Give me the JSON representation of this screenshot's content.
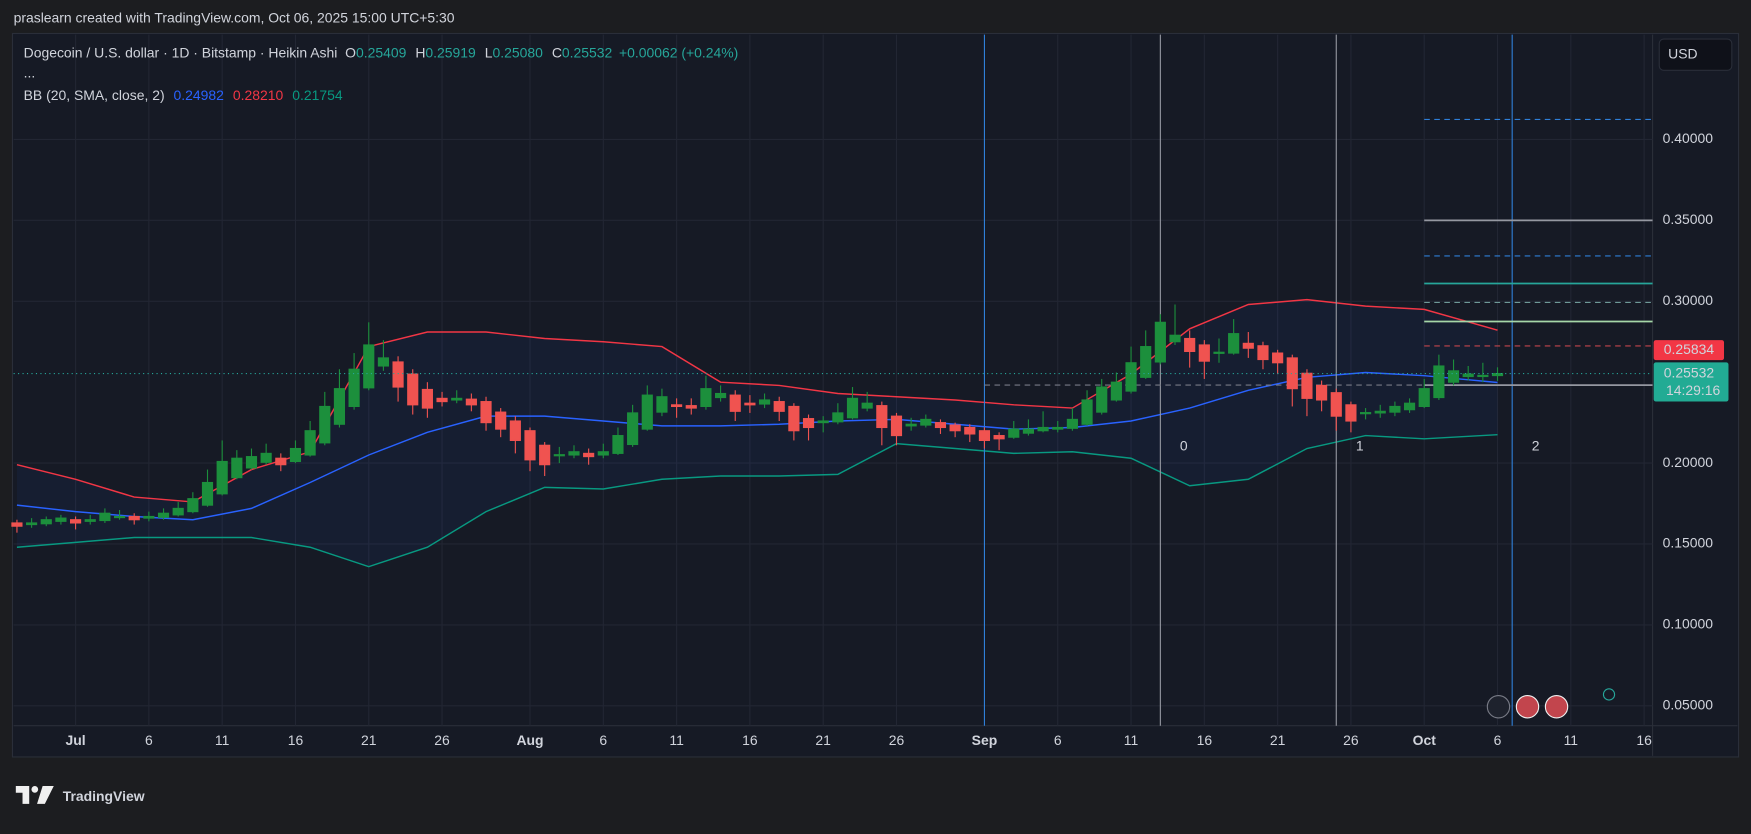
{
  "header": {
    "credit": "praslearn created with TradingView.com, Oct 06, 2025 15:00 UTC+5:30",
    "currency": "USD",
    "logo": "TradingView"
  },
  "chart_data": {
    "type": "candlestick",
    "symbol": "Dogecoin / U.S. dollar · 1D · Bitstamp · Heikin Ashi",
    "more": "...",
    "last_labels": [
      {
        "key": "O",
        "label": "0.25409"
      },
      {
        "key": "H",
        "label": "0.25919"
      },
      {
        "key": "L",
        "label": "0.25080"
      },
      {
        "key": "C",
        "label": "0.25532"
      }
    ],
    "change": "+0.00062 (+0.24%)",
    "up_color": "#1c8f3c",
    "down_color": "#f05350",
    "x": [
      "Jun 27",
      "Jun 28",
      "Jun 29",
      "Jun 30",
      "Jul 1",
      "Jul 2",
      "Jul 3",
      "Jul 4",
      "Jul 5",
      "Jul 6",
      "Jul 7",
      "Jul 8",
      "Jul 9",
      "Jul 10",
      "Jul 11",
      "Jul 12",
      "Jul 13",
      "Jul 14",
      "Jul 15",
      "Jul 16",
      "Jul 17",
      "Jul 18",
      "Jul 19",
      "Jul 20",
      "Jul 21",
      "Jul 22",
      "Jul 23",
      "Jul 24",
      "Jul 25",
      "Jul 26",
      "Jul 27",
      "Jul 28",
      "Jul 29",
      "Jul 30",
      "Jul 31",
      "Aug 1",
      "Aug 2",
      "Aug 3",
      "Aug 4",
      "Aug 5",
      "Aug 6",
      "Aug 7",
      "Aug 8",
      "Aug 9",
      "Aug 10",
      "Aug 11",
      "Aug 12",
      "Aug 13",
      "Aug 14",
      "Aug 15",
      "Aug 16",
      "Aug 17",
      "Aug 18",
      "Aug 19",
      "Aug 20",
      "Aug 21",
      "Aug 22",
      "Aug 23",
      "Aug 24",
      "Aug 25",
      "Aug 26",
      "Aug 27",
      "Aug 28",
      "Aug 29",
      "Aug 30",
      "Aug 31",
      "Sep 1",
      "Sep 2",
      "Sep 3",
      "Sep 4",
      "Sep 5",
      "Sep 6",
      "Sep 7",
      "Sep 8",
      "Sep 9",
      "Sep 10",
      "Sep 11",
      "Sep 12",
      "Sep 13",
      "Sep 14",
      "Sep 15",
      "Sep 16",
      "Sep 17",
      "Sep 18",
      "Sep 19",
      "Sep 20",
      "Sep 21",
      "Sep 22",
      "Sep 23",
      "Sep 24",
      "Sep 25",
      "Sep 26",
      "Sep 27",
      "Sep 28",
      "Sep 29",
      "Sep 30",
      "Oct 1",
      "Oct 2",
      "Oct 3",
      "Oct 4",
      "Oct 5",
      "Oct 6"
    ],
    "ohlc": [
      [
        0.163,
        0.165,
        0.157,
        0.161
      ],
      [
        0.162,
        0.166,
        0.16,
        0.163
      ],
      [
        0.1625,
        0.167,
        0.161,
        0.165
      ],
      [
        0.164,
        0.168,
        0.162,
        0.166
      ],
      [
        0.165,
        0.167,
        0.159,
        0.163
      ],
      [
        0.164,
        0.168,
        0.162,
        0.165
      ],
      [
        0.1645,
        0.172,
        0.163,
        0.169
      ],
      [
        0.167,
        0.171,
        0.165,
        0.167
      ],
      [
        0.167,
        0.169,
        0.162,
        0.165
      ],
      [
        0.166,
        0.17,
        0.164,
        0.167
      ],
      [
        0.1665,
        0.172,
        0.165,
        0.169
      ],
      [
        0.168,
        0.176,
        0.167,
        0.172
      ],
      [
        0.17,
        0.182,
        0.169,
        0.178
      ],
      [
        0.174,
        0.196,
        0.173,
        0.188
      ],
      [
        0.181,
        0.214,
        0.18,
        0.201
      ],
      [
        0.191,
        0.208,
        0.19,
        0.203
      ],
      [
        0.197,
        0.209,
        0.196,
        0.204
      ],
      [
        0.2005,
        0.212,
        0.199,
        0.206
      ],
      [
        0.203,
        0.206,
        0.195,
        0.199
      ],
      [
        0.201,
        0.214,
        0.2,
        0.209
      ],
      [
        0.205,
        0.226,
        0.204,
        0.22
      ],
      [
        0.2125,
        0.244,
        0.211,
        0.235
      ],
      [
        0.224,
        0.258,
        0.222,
        0.246
      ],
      [
        0.235,
        0.268,
        0.233,
        0.258
      ],
      [
        0.2465,
        0.287,
        0.245,
        0.273
      ],
      [
        0.26,
        0.276,
        0.257,
        0.265
      ],
      [
        0.2625,
        0.266,
        0.238,
        0.247
      ],
      [
        0.255,
        0.258,
        0.23,
        0.236
      ],
      [
        0.2455,
        0.25,
        0.228,
        0.234
      ],
      [
        0.24,
        0.244,
        0.235,
        0.238
      ],
      [
        0.239,
        0.245,
        0.237,
        0.24
      ],
      [
        0.2395,
        0.243,
        0.232,
        0.236
      ],
      [
        0.238,
        0.241,
        0.22,
        0.225
      ],
      [
        0.2315,
        0.234,
        0.216,
        0.221
      ],
      [
        0.226,
        0.229,
        0.206,
        0.214
      ],
      [
        0.22,
        0.222,
        0.195,
        0.202
      ],
      [
        0.211,
        0.213,
        0.192,
        0.199
      ],
      [
        0.205,
        0.21,
        0.2,
        0.2052
      ],
      [
        0.205,
        0.211,
        0.203,
        0.207
      ],
      [
        0.206,
        0.209,
        0.199,
        0.204
      ],
      [
        0.205,
        0.212,
        0.203,
        0.207
      ],
      [
        0.206,
        0.222,
        0.205,
        0.217
      ],
      [
        0.2115,
        0.236,
        0.21,
        0.231
      ],
      [
        0.221,
        0.248,
        0.22,
        0.242
      ],
      [
        0.2315,
        0.246,
        0.229,
        0.241
      ],
      [
        0.236,
        0.24,
        0.228,
        0.235
      ],
      [
        0.2355,
        0.24,
        0.23,
        0.234
      ],
      [
        0.235,
        0.254,
        0.233,
        0.246
      ],
      [
        0.2405,
        0.248,
        0.238,
        0.243
      ],
      [
        0.242,
        0.245,
        0.226,
        0.232
      ],
      [
        0.237,
        0.242,
        0.231,
        0.236
      ],
      [
        0.2365,
        0.243,
        0.234,
        0.239
      ],
      [
        0.238,
        0.241,
        0.226,
        0.232
      ],
      [
        0.235,
        0.237,
        0.214,
        0.22
      ],
      [
        0.2275,
        0.23,
        0.214,
        0.222
      ],
      [
        0.225,
        0.229,
        0.219,
        0.226
      ],
      [
        0.2255,
        0.237,
        0.224,
        0.231
      ],
      [
        0.228,
        0.247,
        0.227,
        0.24
      ],
      [
        0.234,
        0.244,
        0.232,
        0.237
      ],
      [
        0.2355,
        0.238,
        0.211,
        0.222
      ],
      [
        0.229,
        0.231,
        0.211,
        0.217
      ],
      [
        0.223,
        0.228,
        0.22,
        0.224
      ],
      [
        0.2235,
        0.23,
        0.222,
        0.227
      ],
      [
        0.225,
        0.227,
        0.218,
        0.222
      ],
      [
        0.2235,
        0.225,
        0.216,
        0.22
      ],
      [
        0.222,
        0.224,
        0.213,
        0.218
      ],
      [
        0.22,
        0.222,
        0.209,
        0.214
      ],
      [
        0.217,
        0.219,
        0.208,
        0.215
      ],
      [
        0.216,
        0.226,
        0.215,
        0.221
      ],
      [
        0.2185,
        0.227,
        0.217,
        0.221
      ],
      [
        0.22,
        0.232,
        0.219,
        0.222
      ],
      [
        0.221,
        0.226,
        0.219,
        0.222
      ],
      [
        0.2215,
        0.234,
        0.22,
        0.227
      ],
      [
        0.224,
        0.245,
        0.223,
        0.239
      ],
      [
        0.2315,
        0.252,
        0.23,
        0.247
      ],
      [
        0.239,
        0.256,
        0.238,
        0.25
      ],
      [
        0.2445,
        0.272,
        0.243,
        0.262
      ],
      [
        0.253,
        0.282,
        0.252,
        0.272
      ],
      [
        0.2625,
        0.292,
        0.261,
        0.287
      ],
      [
        0.275,
        0.298,
        0.273,
        0.279
      ],
      [
        0.277,
        0.282,
        0.259,
        0.269
      ],
      [
        0.273,
        0.276,
        0.252,
        0.263
      ],
      [
        0.268,
        0.277,
        0.262,
        0.2685
      ],
      [
        0.268,
        0.289,
        0.267,
        0.28
      ],
      [
        0.274,
        0.281,
        0.265,
        0.271
      ],
      [
        0.2725,
        0.275,
        0.258,
        0.264
      ],
      [
        0.268,
        0.27,
        0.255,
        0.262
      ],
      [
        0.265,
        0.267,
        0.235,
        0.246
      ],
      [
        0.2555,
        0.258,
        0.229,
        0.24
      ],
      [
        0.248,
        0.251,
        0.232,
        0.239
      ],
      [
        0.2435,
        0.246,
        0.22,
        0.229
      ],
      [
        0.236,
        0.238,
        0.219,
        0.226
      ],
      [
        0.231,
        0.234,
        0.227,
        0.2312
      ],
      [
        0.231,
        0.236,
        0.228,
        0.232
      ],
      [
        0.2315,
        0.238,
        0.229,
        0.235
      ],
      [
        0.233,
        0.24,
        0.231,
        0.237
      ],
      [
        0.235,
        0.252,
        0.234,
        0.246
      ],
      [
        0.2405,
        0.267,
        0.239,
        0.26
      ],
      [
        0.25,
        0.264,
        0.248,
        0.257
      ],
      [
        0.2535,
        0.26,
        0.251,
        0.255
      ],
      [
        0.254,
        0.262,
        0.25,
        0.2542
      ],
      [
        0.25409,
        0.25919,
        0.2508,
        0.25532
      ]
    ],
    "bollinger": {
      "label": "BB (20, SMA, close, 2)",
      "x": [
        "Jun 27",
        "Jul 1",
        "Jul 5",
        "Jul 9",
        "Jul 13",
        "Jul 17",
        "Jul 21",
        "Jul 25",
        "Jul 29",
        "Aug 2",
        "Aug 6",
        "Aug 10",
        "Aug 14",
        "Aug 18",
        "Aug 22",
        "Aug 26",
        "Aug 30",
        "Sep 3",
        "Sep 7",
        "Sep 11",
        "Sep 15",
        "Sep 19",
        "Sep 23",
        "Sep 27",
        "Oct 1",
        "Oct 6"
      ],
      "bands": [
        {
          "color": "#2962ff",
          "legend_value": "0.24982",
          "values": [
            0.174,
            0.17,
            0.167,
            0.165,
            0.172,
            0.188,
            0.205,
            0.219,
            0.229,
            0.229,
            0.226,
            0.223,
            0.223,
            0.224,
            0.226,
            0.227,
            0.224,
            0.221,
            0.222,
            0.226,
            0.234,
            0.245,
            0.253,
            0.256,
            0.254,
            0.24982
          ]
        },
        {
          "color": "#f23645",
          "legend_value": "0.28210",
          "values": [
            0.199,
            0.19,
            0.179,
            0.176,
            0.196,
            0.207,
            0.272,
            0.281,
            0.281,
            0.277,
            0.275,
            0.272,
            0.25,
            0.248,
            0.243,
            0.241,
            0.239,
            0.236,
            0.234,
            0.255,
            0.283,
            0.298,
            0.301,
            0.297,
            0.295,
            0.2821
          ]
        },
        {
          "color": "#089981",
          "legend_value": "0.21754",
          "values": [
            0.148,
            0.151,
            0.154,
            0.154,
            0.154,
            0.148,
            0.136,
            0.148,
            0.17,
            0.185,
            0.184,
            0.19,
            0.192,
            0.192,
            0.193,
            0.212,
            0.209,
            0.206,
            0.207,
            0.203,
            0.186,
            0.19,
            0.209,
            0.217,
            0.215,
            0.21754
          ]
        }
      ]
    },
    "levels": [
      {
        "value": 0.4124,
        "color": "#2f7fd8",
        "dashed": true,
        "from": "Oct 1"
      },
      {
        "value": 0.35,
        "color": "#9598a1",
        "dashed": false,
        "from": "Oct 1"
      },
      {
        "value": 0.328,
        "color": "#2f7fd8",
        "dashed": true,
        "from": "Oct 1"
      },
      {
        "value": 0.311,
        "color": "#26a69a",
        "dashed": false,
        "from": "Oct 1"
      },
      {
        "value": 0.2993,
        "color": "#6f9a98",
        "dashed": true,
        "from": "Oct 1"
      },
      {
        "value": 0.2875,
        "color": "#a5d6a7",
        "dashed": false,
        "from": "Oct 1"
      },
      {
        "value": 0.2724,
        "color": "#c2454d",
        "dashed": true,
        "from": "Oct 1"
      },
      {
        "value": 0.2482,
        "color": "#9598a1",
        "dashed": false,
        "from": "Oct 1"
      },
      {
        "value": 0.2482,
        "color": "#787b86",
        "dashed": true,
        "from": "Sep 1",
        "to": "Oct 1"
      }
    ],
    "vlines": [
      {
        "x": "Sep 1",
        "color": "#2f7fd8"
      },
      {
        "x": "Sep 13",
        "color": "#9598a1",
        "label": "0"
      },
      {
        "x": "Sep 25",
        "color": "#9598a1",
        "label": "1"
      },
      {
        "x": "Oct 7",
        "color": "#2f7fd8",
        "label": "2"
      }
    ],
    "price_labels": [
      {
        "value": 0.25834,
        "color": "#f23645"
      }
    ],
    "countdown": "14:29:16",
    "ylim": [
      0.0377,
      0.4648
    ],
    "yticks": [
      {
        "value": 0.05,
        "label": "0.05000"
      },
      {
        "value": 0.1,
        "label": "0.10000"
      },
      {
        "value": 0.15,
        "label": "0.15000"
      },
      {
        "value": 0.2,
        "label": "0.20000"
      },
      {
        "value": 0.3,
        "label": "0.30000"
      },
      {
        "value": 0.35,
        "label": "0.35000"
      },
      {
        "value": 0.4,
        "label": "0.40000"
      }
    ],
    "xticks": [
      {
        "value": "Jul 1",
        "label": "Jul"
      },
      {
        "value": "Jul 6",
        "label": "6"
      },
      {
        "value": "Jul 11",
        "label": "11"
      },
      {
        "value": "Jul 16",
        "label": "16"
      },
      {
        "value": "Jul 21",
        "label": "21"
      },
      {
        "value": "Jul 26",
        "label": "26"
      },
      {
        "value": "Aug 1",
        "label": "Aug"
      },
      {
        "value": "Aug 6",
        "label": "6"
      },
      {
        "value": "Aug 11",
        "label": "11"
      },
      {
        "value": "Aug 16",
        "label": "16"
      },
      {
        "value": "Aug 21",
        "label": "21"
      },
      {
        "value": "Aug 26",
        "label": "26"
      },
      {
        "value": "Sep 1",
        "label": "Sep"
      },
      {
        "value": "Sep 6",
        "label": "6"
      },
      {
        "value": "Sep 11",
        "label": "11"
      },
      {
        "value": "Sep 16",
        "label": "16"
      },
      {
        "value": "Sep 21",
        "label": "21"
      },
      {
        "value": "Sep 26",
        "label": "26"
      },
      {
        "value": "Oct 1",
        "label": "Oct"
      },
      {
        "value": "Oct 6",
        "label": "6"
      },
      {
        "value": "Oct 11",
        "label": "11"
      },
      {
        "value": "Oct 16",
        "label": "16"
      }
    ],
    "grid": true
  }
}
